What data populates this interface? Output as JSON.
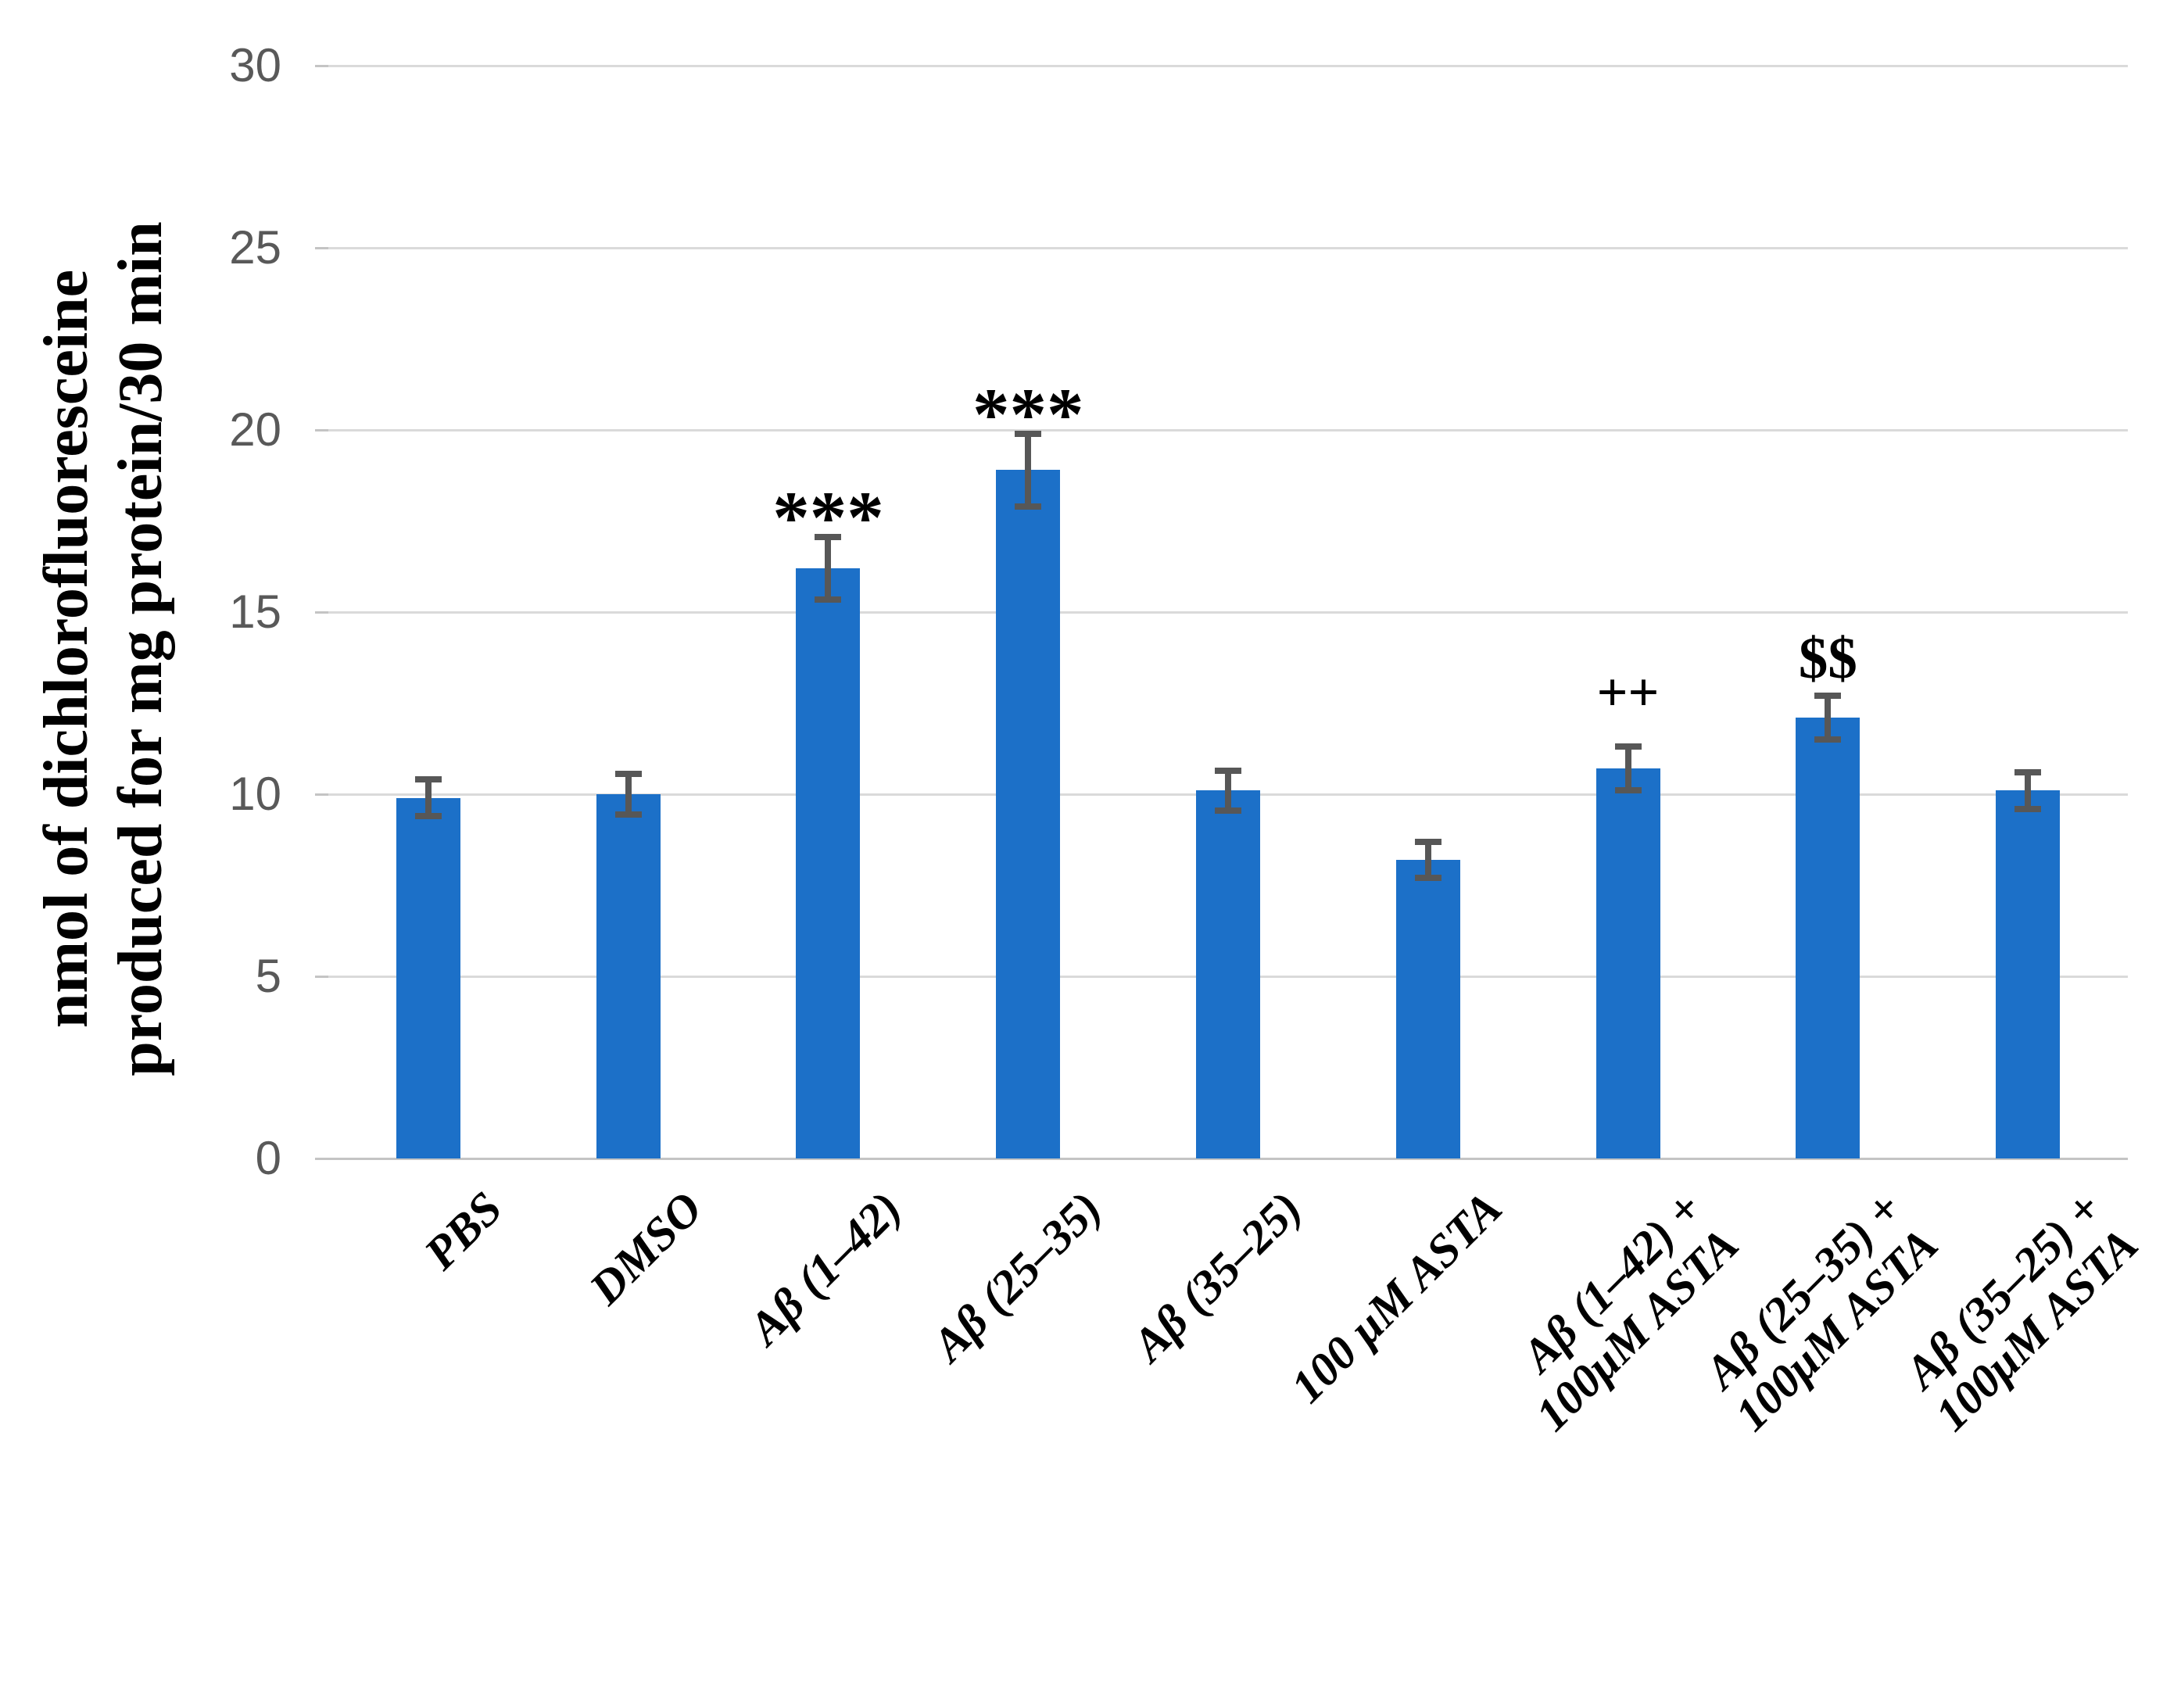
{
  "chart_data": {
    "type": "bar",
    "title": "",
    "ylabel_lines": [
      "nmol of dichlorofluoresceine",
      "produced for mg protein/30 min"
    ],
    "xlabel": "",
    "ylim": [
      0,
      30
    ],
    "yticks": [
      0,
      5,
      10,
      15,
      20,
      25,
      30
    ],
    "grid": true,
    "legend": false,
    "categories": [
      [
        "PBS"
      ],
      [
        "DMSO"
      ],
      [
        "Aβ (1–42)"
      ],
      [
        "Aβ (25–35)"
      ],
      [
        "Aβ (35–25)"
      ],
      [
        "100 μM ASTA"
      ],
      [
        "Aβ (1–42) +",
        "100μM ASTA"
      ],
      [
        "Aβ (25–35) +",
        "100μM ASTA"
      ],
      [
        "Aβ (35–25) +",
        "100μM ASTA"
      ]
    ],
    "values": [
      9.9,
      10.0,
      16.2,
      18.9,
      10.1,
      8.2,
      10.7,
      12.1,
      10.1
    ],
    "errors": [
      0.5,
      0.55,
      0.85,
      1.0,
      0.55,
      0.5,
      0.6,
      0.6,
      0.5
    ],
    "annotations": [
      "",
      "",
      "***",
      "***",
      "",
      "",
      "++",
      "$$",
      ""
    ],
    "bar_color": "#1C70C8",
    "error_bar_color": "#575757",
    "gridline_color": "#DADADA",
    "axis_line_color": "#C4C4C4",
    "tick_label_color": "#595959",
    "text_color": "#000000"
  }
}
